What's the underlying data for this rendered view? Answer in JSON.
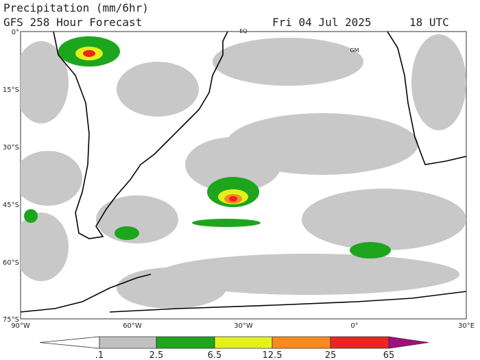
{
  "header": {
    "title": "Precipitation (mm/6hr)",
    "model": "GFS 258 Hour Forecast",
    "date": "Fri 04 Jul 2025",
    "time": "18 UTC"
  },
  "map": {
    "lat_labels": [
      "0°",
      "15°S",
      "30°S",
      "45°S",
      "60°S",
      "75°S"
    ],
    "lon_labels": [
      "90°W",
      "60°W",
      "30°W",
      "0°",
      "30°E"
    ],
    "markers": [
      "EQ",
      "GM"
    ]
  },
  "colorbar": {
    "colors": [
      "#ffffff",
      "#c0c0c0",
      "#1ea51e",
      "#e4f01c",
      "#fa8a1e",
      "#ec2424",
      "#a0107c"
    ],
    "labels": [
      ".1",
      "2.5",
      "6.5",
      "12.5",
      "25",
      "65"
    ]
  }
}
